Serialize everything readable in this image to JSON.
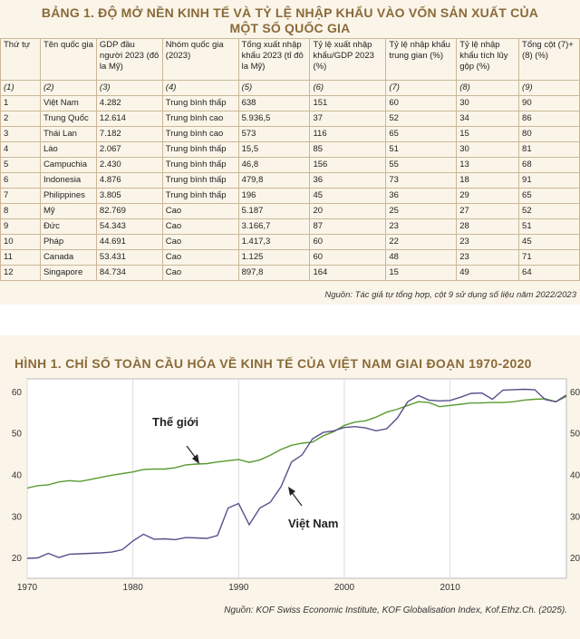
{
  "table": {
    "title_line1": "BẢNG 1.  ĐỘ MỞ NỀN KINH TẾ VÀ TỶ LỆ NHẬP KHẨU VÀO VỐN SẢN XUẤT CỦA",
    "title_line2": "MỘT SỐ QUỐC GIA",
    "headers": [
      "Thứ tự",
      "Tên quốc gia",
      "GDP đầu người 2023 (đô la Mỹ)",
      "Nhóm quốc gia (2023)",
      "Tổng xuất nhập khẩu 2023 (tỉ đô la Mỹ)",
      "Tỷ lệ xuất nhập khẩu/GDP 2023 (%)",
      "Tỷ lệ nhập khẩu trung gian (%)",
      "Tỷ lệ nhập khẩu tích lũy gộp (%)",
      "Tổng cột (7)+(8) (%)"
    ],
    "column_numbers": [
      "(1)",
      "(2)",
      "(3)",
      "(4)",
      "(5)",
      "(6)",
      "(7)",
      "(8)",
      "(9)"
    ],
    "rows": [
      [
        "1",
        "Việt Nam",
        "4.282",
        "Trung bình thấp",
        "638",
        "151",
        "60",
        "30",
        "90"
      ],
      [
        "2",
        "Trung Quốc",
        "12.614",
        "Trung bình cao",
        "5.936,5",
        "37",
        "52",
        "34",
        "86"
      ],
      [
        "3",
        "Thái Lan",
        "7.182",
        "Trung bình cao",
        "573",
        "116",
        "65",
        "15",
        "80"
      ],
      [
        "4",
        "Lào",
        "2.067",
        "Trung bình thấp",
        "15,5",
        "85",
        "51",
        "30",
        "81"
      ],
      [
        "5",
        "Campuchia",
        "2.430",
        "Trung bình thấp",
        "46,8",
        "156",
        "55",
        "13",
        "68"
      ],
      [
        "6",
        "Indonesia",
        "4.876",
        "Trung bình thấp",
        "479,8",
        "36",
        "73",
        "18",
        "91"
      ],
      [
        "7",
        "Philippines",
        "3.805",
        "Trung bình thấp",
        "196",
        "45",
        "36",
        "29",
        "65"
      ],
      [
        "8",
        "Mỹ",
        "82.769",
        "Cao",
        "5.187",
        "20",
        "25",
        "27",
        "52"
      ],
      [
        "9",
        "Đức",
        "54.343",
        "Cao",
        "3.166,7",
        "87",
        "23",
        "28",
        "51"
      ],
      [
        "10",
        "Pháp",
        "44.691",
        "Cao",
        "1.417,3",
        "60",
        "22",
        "23",
        "45"
      ],
      [
        "11",
        "Canada",
        "53.431",
        "Cao",
        "1.125",
        "60",
        "48",
        "23",
        "71"
      ],
      [
        "12",
        "Singapore",
        "84.734",
        "Cao",
        "897,8",
        "164",
        "15",
        "49",
        "64"
      ]
    ],
    "source": "Nguồn: Tác giả tự tổng hợp, cột 9 sử dụng số liệu năm 2022/2023"
  },
  "figure": {
    "source": "Nguồn: KOF Swiss Economic Institute, KOF Globalisation Index, Kof.Ethz.Ch. (2025)."
  },
  "chart_data": {
    "type": "line",
    "title": "HÌNH 1. CHỈ SỐ TOÀN CẦU HÓA VỀ KINH TẾ CỦA VIỆT NAM GIAI ĐOẠN 1970-2020",
    "xlabel": "",
    "ylabel": "",
    "xlim": [
      1970,
      2021
    ],
    "ylim": [
      15,
      63
    ],
    "x_ticks": [
      1970,
      1980,
      1990,
      2000,
      2010
    ],
    "y_ticks": [
      20,
      30,
      40,
      50,
      60
    ],
    "grid": "vertical",
    "colors": {
      "world": "#5a9a32",
      "vietnam": "#5a4f8c",
      "background": "#fbf5e9",
      "title": "#8a6a3a"
    },
    "annotations": [
      {
        "text": "Thế giới",
        "series": "Thế giới"
      },
      {
        "text": "Việt Nam",
        "series": "Việt Nam"
      }
    ],
    "series": [
      {
        "name": "Thế giới",
        "x": [
          1970,
          1971,
          1972,
          1973,
          1974,
          1975,
          1976,
          1977,
          1978,
          1979,
          1980,
          1981,
          1982,
          1983,
          1984,
          1985,
          1986,
          1987,
          1988,
          1989,
          1990,
          1991,
          1992,
          1993,
          1994,
          1995,
          1996,
          1997,
          1998,
          1999,
          2000,
          2001,
          2002,
          2003,
          2004,
          2005,
          2006,
          2007,
          2008,
          2009,
          2010,
          2011,
          2012,
          2013,
          2014,
          2015,
          2016,
          2017,
          2018,
          2019,
          2020,
          2021
        ],
        "values": [
          36.7,
          37.3,
          37.5,
          38.2,
          38.5,
          38.3,
          38.8,
          39.3,
          39.8,
          40.2,
          40.6,
          41.2,
          41.3,
          41.3,
          41.6,
          42.3,
          42.5,
          42.6,
          43,
          43.3,
          43.6,
          42.9,
          43.5,
          44.6,
          46,
          47,
          47.5,
          47.8,
          49.3,
          50.3,
          51.8,
          52.6,
          52.9,
          53.8,
          55,
          55.7,
          56.6,
          57.5,
          57.3,
          56.3,
          56.6,
          56.9,
          57.2,
          57.2,
          57.3,
          57.3,
          57.5,
          57.9,
          58.1,
          58.2,
          57.5,
          58.8
        ]
      },
      {
        "name": "Việt Nam",
        "x": [
          1970,
          1971,
          1972,
          1973,
          1974,
          1975,
          1976,
          1977,
          1978,
          1979,
          1980,
          1981,
          1982,
          1983,
          1984,
          1985,
          1986,
          1987,
          1988,
          1989,
          1990,
          1991,
          1992,
          1993,
          1994,
          1995,
          1996,
          1997,
          1998,
          1999,
          2000,
          2001,
          2002,
          2003,
          2004,
          2005,
          2006,
          2007,
          2008,
          2009,
          2010,
          2011,
          2012,
          2013,
          2014,
          2015,
          2016,
          2017,
          2018,
          2019,
          2020,
          2021
        ],
        "values": [
          19.8,
          19.9,
          21,
          20,
          20.8,
          20.9,
          21,
          21.1,
          21.3,
          21.9,
          24,
          25.6,
          24.4,
          24.5,
          24.3,
          24.8,
          24.7,
          24.6,
          25.3,
          31.9,
          33,
          27.9,
          31.9,
          33.3,
          37,
          43,
          44.7,
          48.6,
          50.1,
          50.5,
          51.3,
          51.5,
          51.2,
          50.5,
          51,
          53.5,
          57.5,
          59,
          57.9,
          57.7,
          57.8,
          58.6,
          59.5,
          59.6,
          58.1,
          60.3,
          60.4,
          60.5,
          60.4,
          58,
          57.5,
          59.1
        ]
      }
    ]
  }
}
